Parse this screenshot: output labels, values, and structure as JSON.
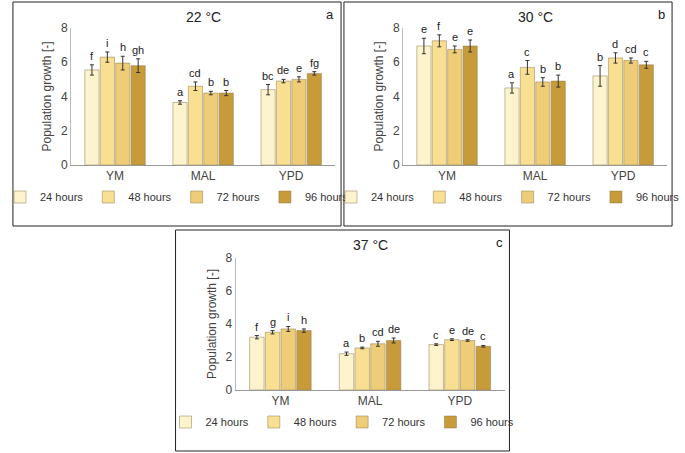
{
  "chart_data": [
    {
      "type": "bar",
      "title": "22 °C",
      "annotations": [
        "a"
      ],
      "y_label": "Population growth [-]",
      "categories": [
        "YM",
        "MAL",
        "YPD"
      ],
      "ylim": [
        0,
        8
      ],
      "yticks": [
        0,
        2,
        4,
        6,
        8
      ],
      "grid": false,
      "legend": "bottom",
      "series": [
        {
          "name": "24 hours",
          "color": "#fdf3cc",
          "values": [
            5.55,
            3.65,
            4.4
          ],
          "errors": [
            0.3,
            0.1,
            0.3
          ],
          "labels": [
            "f",
            "a",
            "bc"
          ]
        },
        {
          "name": "48 hours",
          "color": "#f9df91",
          "values": [
            6.3,
            4.6,
            4.9
          ],
          "errors": [
            0.3,
            0.25,
            0.1
          ],
          "labels": [
            "i",
            "cd",
            "de"
          ]
        },
        {
          "name": "72 hours",
          "color": "#efcd78",
          "values": [
            5.95,
            4.2,
            5.0
          ],
          "errors": [
            0.4,
            0.1,
            0.15
          ],
          "labels": [
            "h",
            "b",
            "e"
          ]
        },
        {
          "name": "96 hours",
          "color": "#c79a3a",
          "values": [
            5.8,
            4.2,
            5.35
          ],
          "errors": [
            0.4,
            0.15,
            0.1
          ],
          "labels": [
            "gh",
            "b",
            "fg"
          ]
        }
      ]
    },
    {
      "type": "bar",
      "title": "30 °C",
      "annotations": [
        "b"
      ],
      "y_label": "Population growth [-]",
      "categories": [
        "YM",
        "MAL",
        "YPD"
      ],
      "ylim": [
        0,
        8
      ],
      "yticks": [
        0,
        2,
        4,
        6,
        8
      ],
      "grid": false,
      "legend": "bottom",
      "series": [
        {
          "name": "24 hours",
          "color": "#fdf3cc",
          "values": [
            6.95,
            4.5,
            5.2
          ],
          "errors": [
            0.45,
            0.3,
            0.6
          ],
          "labels": [
            "e",
            "a",
            "b"
          ]
        },
        {
          "name": "48 hours",
          "color": "#f9df91",
          "values": [
            7.25,
            5.7,
            6.25
          ],
          "errors": [
            0.35,
            0.4,
            0.3
          ],
          "labels": [
            "f",
            "c",
            "d"
          ]
        },
        {
          "name": "72 hours",
          "color": "#efcd78",
          "values": [
            6.75,
            4.85,
            6.1
          ],
          "errors": [
            0.2,
            0.25,
            0.15
          ],
          "labels": [
            "e",
            "b",
            "cd"
          ]
        },
        {
          "name": "96 hours",
          "color": "#c79a3a",
          "values": [
            6.95,
            4.9,
            5.85
          ],
          "errors": [
            0.35,
            0.35,
            0.2
          ],
          "labels": [
            "e",
            "b",
            "c"
          ]
        }
      ]
    },
    {
      "type": "bar",
      "title": "37 °C",
      "annotations": [
        "c"
      ],
      "y_label": "Population growth [-]",
      "categories": [
        "YM",
        "MAL",
        "YPD"
      ],
      "ylim": [
        0,
        8
      ],
      "yticks": [
        0,
        2,
        4,
        6,
        8
      ],
      "grid": false,
      "legend": "bottom",
      "series": [
        {
          "name": "24 hours",
          "color": "#fdf3cc",
          "values": [
            3.2,
            2.2,
            2.75
          ],
          "errors": [
            0.1,
            0.1,
            0.05
          ],
          "labels": [
            "f",
            "a",
            "c"
          ]
        },
        {
          "name": "48 hours",
          "color": "#f9df91",
          "values": [
            3.5,
            2.55,
            3.05
          ],
          "errors": [
            0.1,
            0.05,
            0.05
          ],
          "labels": [
            "g",
            "b",
            "e"
          ]
        },
        {
          "name": "72 hours",
          "color": "#efcd78",
          "values": [
            3.7,
            2.8,
            3.0
          ],
          "errors": [
            0.15,
            0.15,
            0.05
          ],
          "labels": [
            "i",
            "cd",
            "de"
          ]
        },
        {
          "name": "96 hours",
          "color": "#c79a3a",
          "values": [
            3.6,
            3.0,
            2.65
          ],
          "errors": [
            0.1,
            0.15,
            0.05
          ],
          "labels": [
            "h",
            "de",
            "c"
          ]
        }
      ]
    }
  ]
}
